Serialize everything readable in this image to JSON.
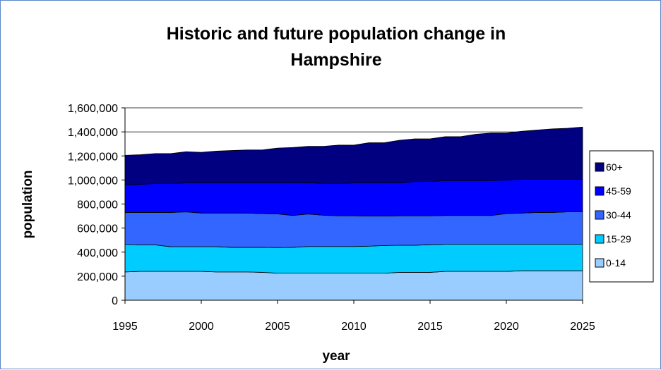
{
  "chart_data": {
    "type": "area",
    "title_lines": [
      "Historic and future population change in",
      "Hampshire"
    ],
    "xlabel": "year",
    "ylabel": "population",
    "xlim": [
      1995,
      2025
    ],
    "ylim": [
      0,
      1600000
    ],
    "x_ticks": [
      "1995",
      "2000",
      "2005",
      "2010",
      "2015",
      "2020",
      "2025"
    ],
    "y_ticks": [
      "0",
      "200,000",
      "400,000",
      "600,000",
      "800,000",
      "1,000,000",
      "1,200,000",
      "1,400,000",
      "1,600,000"
    ],
    "grid": true,
    "legend_position": "right",
    "x": [
      1995,
      1996,
      1997,
      1998,
      1999,
      2000,
      2001,
      2002,
      2003,
      2004,
      2005,
      2006,
      2007,
      2008,
      2009,
      2010,
      2011,
      2012,
      2013,
      2014,
      2015,
      2016,
      2017,
      2018,
      2019,
      2020,
      2021,
      2022,
      2023,
      2024,
      2025
    ],
    "stacked": true,
    "series": [
      {
        "name": "0-14",
        "color": "#99ccff",
        "values": [
          235000,
          240000,
          240000,
          240000,
          240000,
          240000,
          235000,
          235000,
          235000,
          232000,
          225000,
          225000,
          225000,
          225000,
          225000,
          225000,
          225000,
          225000,
          232000,
          232000,
          232000,
          240000,
          240000,
          240000,
          240000,
          240000,
          245000,
          245000,
          245000,
          245000,
          245000
        ]
      },
      {
        "name": "15-29",
        "color": "#00ccff",
        "values": [
          230000,
          220000,
          220000,
          205000,
          205000,
          205000,
          210000,
          205000,
          205000,
          208000,
          213000,
          215000,
          222000,
          222000,
          222000,
          222000,
          225000,
          230000,
          225000,
          225000,
          230000,
          225000,
          225000,
          225000,
          225000,
          225000,
          220000,
          220000,
          220000,
          220000,
          220000
        ]
      },
      {
        "name": "30-44",
        "color": "#3366ff",
        "values": [
          265000,
          270000,
          270000,
          285000,
          290000,
          280000,
          280000,
          285000,
          285000,
          280000,
          280000,
          265000,
          270000,
          260000,
          255000,
          255000,
          250000,
          245000,
          245000,
          245000,
          240000,
          240000,
          240000,
          240000,
          240000,
          255000,
          260000,
          265000,
          265000,
          270000,
          270000
        ]
      },
      {
        "name": "45-59",
        "color": "#0000ff",
        "values": [
          230000,
          235000,
          240000,
          240000,
          240000,
          250000,
          250000,
          250000,
          250000,
          255000,
          257000,
          270000,
          260000,
          265000,
          268000,
          273000,
          275000,
          275000,
          275000,
          285000,
          285000,
          290000,
          290000,
          290000,
          290000,
          280000,
          280000,
          275000,
          275000,
          270000,
          270000
        ]
      },
      {
        "name": "60+",
        "color": "#000080",
        "values": [
          245000,
          245000,
          250000,
          250000,
          260000,
          255000,
          265000,
          270000,
          275000,
          275000,
          290000,
          295000,
          303000,
          308000,
          320000,
          315000,
          335000,
          335000,
          353000,
          355000,
          355000,
          365000,
          365000,
          385000,
          395000,
          390000,
          400000,
          410000,
          420000,
          425000,
          435000
        ]
      }
    ]
  }
}
